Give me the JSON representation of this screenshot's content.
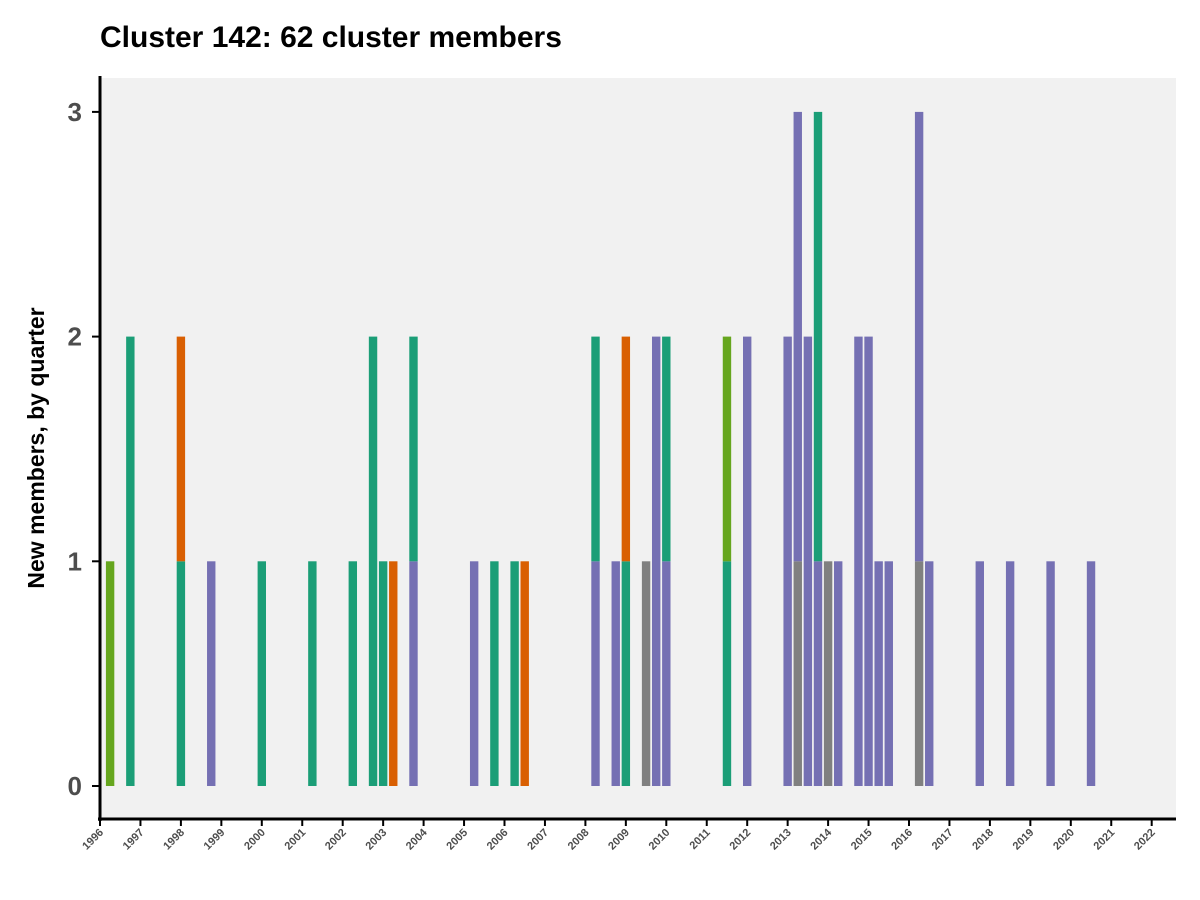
{
  "chart_data": {
    "type": "bar",
    "stacked": true,
    "title": "Cluster 142: 62 cluster members",
    "xlabel": "",
    "ylabel": "New members, by quarter",
    "ylim": [
      0,
      3
    ],
    "yticks": [
      0,
      1,
      2,
      3
    ],
    "xticks": [
      "1996",
      "1997",
      "1998",
      "1999",
      "2000",
      "2001",
      "2002",
      "2003",
      "2004",
      "2005",
      "2006",
      "2007",
      "2008",
      "2009",
      "2010",
      "2011",
      "2012",
      "2013",
      "2014",
      "2015",
      "2016",
      "2017",
      "2018",
      "2019",
      "2020",
      "2021",
      "2022"
    ],
    "grid": false,
    "legend": "none",
    "group_colors": {
      "green": "#66a61e",
      "teal": "#1b9e77",
      "orange": "#d95f02",
      "purple": "#7570b3",
      "gray": "#808080"
    },
    "bars": [
      {
        "x": 1996.25,
        "stack": [
          {
            "group": "green",
            "value": 1
          }
        ]
      },
      {
        "x": 1996.75,
        "stack": [
          {
            "group": "teal",
            "value": 2
          }
        ]
      },
      {
        "x": 1998.0,
        "stack": [
          {
            "group": "teal",
            "value": 1
          },
          {
            "group": "orange",
            "value": 1
          }
        ]
      },
      {
        "x": 1998.75,
        "stack": [
          {
            "group": "purple",
            "value": 1
          }
        ]
      },
      {
        "x": 2000.0,
        "stack": [
          {
            "group": "teal",
            "value": 1
          }
        ]
      },
      {
        "x": 2001.25,
        "stack": [
          {
            "group": "teal",
            "value": 1
          }
        ]
      },
      {
        "x": 2002.25,
        "stack": [
          {
            "group": "teal",
            "value": 1
          }
        ]
      },
      {
        "x": 2002.75,
        "stack": [
          {
            "group": "teal",
            "value": 2
          }
        ]
      },
      {
        "x": 2003.0,
        "stack": [
          {
            "group": "teal",
            "value": 1
          }
        ]
      },
      {
        "x": 2003.25,
        "stack": [
          {
            "group": "orange",
            "value": 1
          }
        ]
      },
      {
        "x": 2003.75,
        "stack": [
          {
            "group": "purple",
            "value": 1
          },
          {
            "group": "teal",
            "value": 1
          }
        ]
      },
      {
        "x": 2005.25,
        "stack": [
          {
            "group": "purple",
            "value": 1
          }
        ]
      },
      {
        "x": 2005.75,
        "stack": [
          {
            "group": "teal",
            "value": 1
          }
        ]
      },
      {
        "x": 2006.25,
        "stack": [
          {
            "group": "teal",
            "value": 1
          }
        ]
      },
      {
        "x": 2006.5,
        "stack": [
          {
            "group": "orange",
            "value": 1
          }
        ]
      },
      {
        "x": 2008.25,
        "stack": [
          {
            "group": "purple",
            "value": 1
          },
          {
            "group": "teal",
            "value": 1
          }
        ]
      },
      {
        "x": 2008.75,
        "stack": [
          {
            "group": "purple",
            "value": 1
          }
        ]
      },
      {
        "x": 2009.0,
        "stack": [
          {
            "group": "teal",
            "value": 1
          },
          {
            "group": "orange",
            "value": 1
          }
        ]
      },
      {
        "x": 2009.5,
        "stack": [
          {
            "group": "gray",
            "value": 1
          }
        ]
      },
      {
        "x": 2009.75,
        "stack": [
          {
            "group": "purple",
            "value": 2
          }
        ]
      },
      {
        "x": 2010.0,
        "stack": [
          {
            "group": "purple",
            "value": 1
          },
          {
            "group": "teal",
            "value": 1
          }
        ]
      },
      {
        "x": 2011.5,
        "stack": [
          {
            "group": "teal",
            "value": 1
          },
          {
            "group": "green",
            "value": 1
          }
        ]
      },
      {
        "x": 2012.0,
        "stack": [
          {
            "group": "purple",
            "value": 2
          }
        ]
      },
      {
        "x": 2013.0,
        "stack": [
          {
            "group": "purple",
            "value": 2
          }
        ]
      },
      {
        "x": 2013.25,
        "stack": [
          {
            "group": "gray",
            "value": 1
          },
          {
            "group": "purple",
            "value": 2
          }
        ]
      },
      {
        "x": 2013.5,
        "stack": [
          {
            "group": "purple",
            "value": 2
          }
        ]
      },
      {
        "x": 2013.75,
        "stack": [
          {
            "group": "purple",
            "value": 1
          },
          {
            "group": "teal",
            "value": 2
          }
        ]
      },
      {
        "x": 2014.0,
        "stack": [
          {
            "group": "gray",
            "value": 1
          }
        ]
      },
      {
        "x": 2014.25,
        "stack": [
          {
            "group": "purple",
            "value": 1
          }
        ]
      },
      {
        "x": 2014.75,
        "stack": [
          {
            "group": "purple",
            "value": 2
          }
        ]
      },
      {
        "x": 2015.0,
        "stack": [
          {
            "group": "purple",
            "value": 2
          }
        ]
      },
      {
        "x": 2015.25,
        "stack": [
          {
            "group": "purple",
            "value": 1
          }
        ]
      },
      {
        "x": 2015.5,
        "stack": [
          {
            "group": "purple",
            "value": 1
          }
        ]
      },
      {
        "x": 2016.25,
        "stack": [
          {
            "group": "gray",
            "value": 1
          },
          {
            "group": "purple",
            "value": 2
          }
        ]
      },
      {
        "x": 2016.5,
        "stack": [
          {
            "group": "purple",
            "value": 1
          }
        ]
      },
      {
        "x": 2017.75,
        "stack": [
          {
            "group": "purple",
            "value": 1
          }
        ]
      },
      {
        "x": 2018.5,
        "stack": [
          {
            "group": "purple",
            "value": 1
          }
        ]
      },
      {
        "x": 2019.5,
        "stack": [
          {
            "group": "purple",
            "value": 1
          }
        ]
      },
      {
        "x": 2020.5,
        "stack": [
          {
            "group": "purple",
            "value": 1
          }
        ]
      }
    ]
  }
}
